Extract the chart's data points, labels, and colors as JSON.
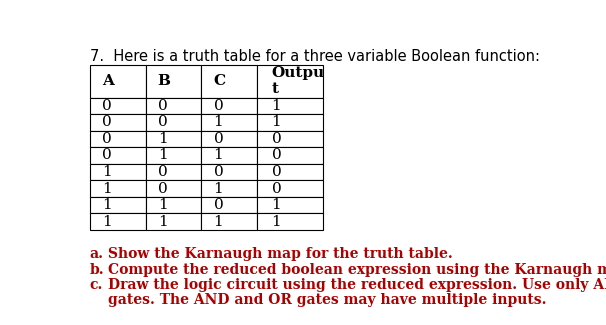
{
  "title": "7.  Here is a truth table for a three variable Boolean function:",
  "title_fontsize": 10.5,
  "headers": [
    "A",
    "B",
    "C",
    "Outpu\nt"
  ],
  "rows": [
    [
      "0",
      "0",
      "0",
      "1"
    ],
    [
      "0",
      "0",
      "1",
      "1"
    ],
    [
      "0",
      "1",
      "0",
      "0"
    ],
    [
      "0",
      "1",
      "1",
      "0"
    ],
    [
      "1",
      "0",
      "0",
      "0"
    ],
    [
      "1",
      "0",
      "1",
      "0"
    ],
    [
      "1",
      "1",
      "0",
      "1"
    ],
    [
      "1",
      "1",
      "1",
      "1"
    ]
  ],
  "questions": [
    [
      "a.",
      "Show the Karnaugh map for the truth table."
    ],
    [
      "b.",
      "Compute the reduced boolean expression using the Karnaugh map."
    ],
    [
      "c.",
      "Draw the logic circuit using the reduced expression. Use only AND, OR and NOT\ngates. The AND and OR gates may have multiple inputs."
    ]
  ],
  "question_fontsize": 10,
  "background_color": "#ffffff",
  "text_color": "#000000",
  "question_color": "#aa0000",
  "cell_fontsize": 11,
  "header_fontsize": 11
}
